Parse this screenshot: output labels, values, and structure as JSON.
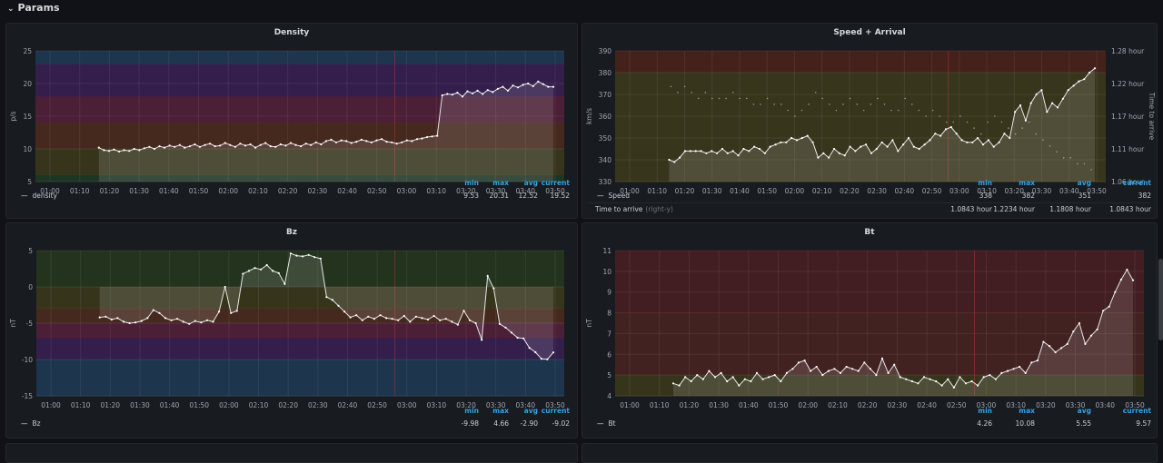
{
  "row": {
    "title": "Params",
    "chevron": "⌄"
  },
  "colors": {
    "area": "#ffffff",
    "line": "#e6e6e6",
    "axis_text": "#9fa7b3",
    "legend_head": "#33a2e5"
  },
  "panels": [
    {
      "id": "density",
      "title": "Density",
      "ylabel": "p/s",
      "y_ticks": [
        "25",
        "20",
        "15",
        "10",
        "5"
      ],
      "x_ticks": [
        "01:00",
        "01:10",
        "01:20",
        "01:30",
        "01:40",
        "01:50",
        "02:00",
        "02:10",
        "02:20",
        "02:30",
        "02:40",
        "02:50",
        "03:00",
        "03:10",
        "03:20",
        "03:30",
        "03:40",
        "03:50"
      ],
      "ylim": [
        5,
        25
      ],
      "bands": [
        {
          "from": 23,
          "to": 25,
          "color": "#1f3a56"
        },
        {
          "from": 18,
          "to": 23,
          "color": "#3a1f55"
        },
        {
          "from": 14,
          "to": 18,
          "color": "#55203a"
        },
        {
          "from": 10,
          "to": 14,
          "color": "#4d2a1e"
        },
        {
          "from": 6,
          "to": 10,
          "color": "#3c3a1c"
        },
        {
          "from": 5,
          "to": 6,
          "color": "#1e3a24"
        }
      ],
      "series": [
        {
          "name": "density",
          "min": "9.53",
          "max": "20.31",
          "avg": "12.52",
          "current": "19.52"
        }
      ],
      "legend_headers": [
        "min",
        "max",
        "avg",
        "current"
      ],
      "values": [
        10.2,
        9.8,
        9.7,
        9.9,
        9.6,
        9.8,
        9.7,
        10.0,
        9.8,
        10.1,
        10.3,
        10.0,
        10.4,
        10.2,
        10.5,
        10.3,
        10.6,
        10.2,
        10.4,
        10.7,
        10.3,
        10.6,
        10.8,
        10.4,
        10.5,
        10.9,
        10.6,
        10.3,
        10.8,
        10.5,
        10.7,
        10.2,
        10.6,
        10.9,
        10.4,
        10.3,
        10.7,
        10.5,
        10.9,
        10.6,
        10.4,
        10.8,
        10.6,
        11.0,
        10.7,
        11.2,
        11.4,
        11.0,
        11.3,
        11.2,
        10.9,
        11.1,
        11.4,
        11.2,
        11.0,
        11.3,
        11.5,
        11.1,
        11.0,
        10.8,
        11.0,
        11.3,
        11.2,
        11.5,
        11.6,
        11.8,
        11.9,
        12.0,
        18.2,
        18.4,
        18.3,
        18.6,
        18.0,
        18.8,
        18.5,
        18.9,
        18.4,
        19.0,
        18.7,
        19.2,
        19.5,
        18.9,
        19.7,
        19.4,
        19.8,
        20.0,
        19.6,
        20.3,
        19.9,
        19.5,
        19.5
      ],
      "start_frac": 0.12
    },
    {
      "id": "speed",
      "title": "Speed + Arrival",
      "ylabel": "km/s",
      "ylabel_right": "Time to arrive",
      "y_ticks": [
        "390",
        "380",
        "370",
        "360",
        "350",
        "340",
        "330"
      ],
      "y_ticks_right": [
        "1.28 hour",
        "1.22 hour",
        "1.17 hour",
        "1.11 hour",
        "1.06 hour"
      ],
      "x_ticks": [
        "01:00",
        "01:10",
        "01:20",
        "01:30",
        "01:40",
        "01:50",
        "02:00",
        "02:10",
        "02:20",
        "02:30",
        "02:40",
        "02:50",
        "03:00",
        "03:10",
        "03:20",
        "03:30",
        "03:40",
        "03:50"
      ],
      "ylim": [
        330,
        390
      ],
      "bands": [
        {
          "from": 380,
          "to": 390,
          "color": "#4d221c"
        },
        {
          "from": 330,
          "to": 380,
          "color": "#3e3a1d"
        }
      ],
      "series": [
        {
          "name": "Speed",
          "min": "338",
          "max": "382",
          "avg": "351",
          "current": "382"
        },
        {
          "name": "Time to arrive",
          "extra": "(right-y)",
          "min": "1.0843 hour",
          "max": "1.2234 hour",
          "avg": "1.1808 hour",
          "current": "1.0843 hour"
        }
      ],
      "legend_headers": [
        "min",
        "max",
        "avg",
        "current"
      ],
      "values": [
        340,
        339,
        341,
        344,
        344,
        344,
        344,
        343,
        344,
        343,
        345,
        343,
        344,
        342,
        345,
        344,
        346,
        345,
        343,
        346,
        347,
        348,
        348,
        350,
        349,
        350,
        351,
        348,
        341,
        343,
        341,
        345,
        343,
        342,
        346,
        344,
        346,
        347,
        343,
        345,
        348,
        346,
        349,
        344,
        347,
        350,
        346,
        345,
        347,
        349,
        352,
        351,
        354,
        355,
        352,
        349,
        348,
        348,
        350,
        347,
        349,
        346,
        348,
        352,
        350,
        362,
        365,
        358,
        366,
        370,
        372,
        362,
        366,
        364,
        368,
        372,
        374,
        376,
        377,
        380,
        382
      ],
      "values2": [
        1.22,
        1.21,
        1.22,
        1.21,
        1.2,
        1.21,
        1.2,
        1.2,
        1.2,
        1.21,
        1.2,
        1.2,
        1.19,
        1.19,
        1.2,
        1.19,
        1.19,
        1.18,
        1.17,
        1.18,
        1.19,
        1.21,
        1.2,
        1.19,
        1.18,
        1.19,
        1.2,
        1.19,
        1.18,
        1.19,
        1.2,
        1.19,
        1.18,
        1.18,
        1.2,
        1.19,
        1.18,
        1.17,
        1.18,
        1.17,
        1.16,
        1.16,
        1.17,
        1.16,
        1.15,
        1.14,
        1.16,
        1.17,
        1.16,
        1.15,
        1.14,
        1.15,
        1.16,
        1.14,
        1.13,
        1.12,
        1.11,
        1.1,
        1.1,
        1.09,
        1.09,
        1.08
      ],
      "ylim2": [
        1.06,
        1.28
      ],
      "start_frac": 0.11
    },
    {
      "id": "bz",
      "title": "Bz",
      "ylabel": "nT",
      "y_ticks": [
        "5",
        "0",
        "-5",
        "-10",
        "-15"
      ],
      "x_ticks": [
        "01:00",
        "01:10",
        "01:20",
        "01:30",
        "01:40",
        "01:50",
        "02:00",
        "02:10",
        "02:20",
        "02:30",
        "02:40",
        "02:50",
        "03:00",
        "03:10",
        "03:20",
        "03:30",
        "03:40",
        "03:50"
      ],
      "ylim": [
        -15,
        5
      ],
      "bands": [
        {
          "from": 0,
          "to": 5,
          "color": "#27371f"
        },
        {
          "from": -3,
          "to": 0,
          "color": "#3c3a1c"
        },
        {
          "from": -5,
          "to": -3,
          "color": "#4d2a1e"
        },
        {
          "from": -7,
          "to": -5,
          "color": "#55203a"
        },
        {
          "from": -10,
          "to": -7,
          "color": "#3a1f55"
        },
        {
          "from": -15,
          "to": -10,
          "color": "#1f3a56"
        }
      ],
      "series": [
        {
          "name": "Bz",
          "min": "-9.98",
          "max": "4.66",
          "avg": "-2.90",
          "current": "-9.02"
        }
      ],
      "legend_headers": [
        "min",
        "max",
        "avg",
        "current"
      ],
      "values": [
        -4.2,
        -4.1,
        -4.5,
        -4.3,
        -4.8,
        -5.0,
        -4.9,
        -4.7,
        -4.3,
        -3.2,
        -3.6,
        -4.3,
        -4.6,
        -4.4,
        -4.8,
        -5.1,
        -4.7,
        -4.9,
        -4.6,
        -4.8,
        -3.4,
        0.0,
        -3.6,
        -3.3,
        1.8,
        2.2,
        2.6,
        2.4,
        3.0,
        2.2,
        1.9,
        0.4,
        4.6,
        4.3,
        4.2,
        4.4,
        4.1,
        3.9,
        -1.4,
        -1.8,
        -2.6,
        -3.4,
        -4.2,
        -3.9,
        -4.6,
        -4.1,
        -4.4,
        -3.9,
        -4.3,
        -4.4,
        -4.6,
        -4.0,
        -4.8,
        -4.1,
        -4.3,
        -4.5,
        -4.0,
        -4.6,
        -4.4,
        -4.8,
        -5.2,
        -3.3,
        -4.6,
        -5.0,
        -7.3,
        1.5,
        -0.2,
        -5.1,
        -5.6,
        -6.3,
        -7.0,
        -7.1,
        -8.4,
        -9.0,
        -9.9,
        -9.98,
        -9.02
      ],
      "start_frac": 0.12
    },
    {
      "id": "bt",
      "title": "Bt",
      "ylabel": "nT",
      "y_ticks": [
        "11",
        "10",
        "9",
        "8",
        "7",
        "6",
        "5",
        "4"
      ],
      "x_ticks": [
        "01:00",
        "01:10",
        "01:20",
        "01:30",
        "01:40",
        "01:50",
        "02:00",
        "02:10",
        "02:20",
        "02:30",
        "02:40",
        "02:50",
        "03:00",
        "03:10",
        "03:20",
        "03:30",
        "03:40",
        "03:50"
      ],
      "ylim": [
        4,
        11
      ],
      "bands": [
        {
          "from": 8,
          "to": 11,
          "color": "#4a1f23"
        },
        {
          "from": 5,
          "to": 8,
          "color": "#4a2322"
        },
        {
          "from": 4,
          "to": 5,
          "color": "#3c3a1c"
        }
      ],
      "series": [
        {
          "name": "Bt",
          "min": "4.26",
          "max": "10.08",
          "avg": "5.55",
          "current": "9.57"
        }
      ],
      "legend_headers": [
        "min",
        "max",
        "avg",
        "current"
      ],
      "values": [
        4.6,
        4.5,
        4.9,
        4.7,
        5.0,
        4.8,
        5.2,
        4.9,
        5.1,
        4.7,
        4.9,
        4.5,
        4.8,
        4.7,
        5.1,
        4.8,
        4.9,
        5.0,
        4.7,
        5.1,
        5.3,
        5.6,
        5.7,
        5.2,
        5.4,
        5.0,
        5.2,
        5.3,
        5.1,
        5.4,
        5.3,
        5.2,
        5.6,
        5.3,
        5.0,
        5.8,
        5.1,
        5.5,
        4.9,
        4.8,
        4.7,
        4.6,
        4.9,
        4.8,
        4.7,
        4.5,
        4.8,
        4.4,
        4.9,
        4.6,
        4.7,
        4.5,
        4.9,
        5.0,
        4.8,
        5.1,
        5.2,
        5.3,
        5.4,
        5.1,
        5.6,
        5.7,
        6.6,
        6.4,
        6.1,
        6.3,
        6.5,
        7.1,
        7.5,
        6.5,
        6.9,
        7.2,
        8.1,
        8.3,
        9.0,
        9.6,
        10.08,
        9.57
      ],
      "start_frac": 0.11
    }
  ]
}
